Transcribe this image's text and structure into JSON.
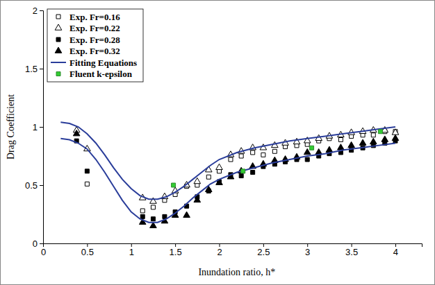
{
  "chart_data": {
    "type": "scatter",
    "x_label": "Inundation ratio, h*",
    "y_label": "Drag Coefficient",
    "xlim": [
      0,
      4.3
    ],
    "ylim": [
      0,
      2
    ],
    "xticks": [
      0,
      0.5,
      1,
      1.5,
      2,
      2.5,
      3,
      3.5,
      4
    ],
    "yticks": [
      0,
      0.5,
      1,
      1.5,
      2
    ],
    "grid": false,
    "legend": "top-left",
    "series": [
      {
        "name": "Exp. Fr=0.16",
        "color": "#000000",
        "marker": "square-open",
        "x": [
          0.5,
          1.13,
          1.25,
          1.38,
          1.5,
          1.63,
          1.75,
          1.88,
          2,
          2.13,
          2.25,
          2.38,
          2.5,
          2.63,
          2.75,
          2.88,
          3,
          3.13,
          3.25,
          3.38,
          3.5,
          3.63,
          3.75,
          3.88,
          4
        ],
        "values": [
          0.51,
          0.28,
          0.31,
          0.37,
          0.42,
          0.49,
          0.5,
          0.57,
          0.62,
          0.72,
          0.75,
          0.78,
          0.76,
          0.79,
          0.83,
          0.84,
          0.85,
          0.88,
          0.9,
          0.89,
          0.92,
          0.93,
          0.93,
          0.96,
          0.96
        ]
      },
      {
        "name": "Exp. Fr=0.22",
        "color": "#000000",
        "marker": "triangle-open",
        "x": [
          0.38,
          0.5,
          1.13,
          1.25,
          1.38,
          1.5,
          1.63,
          1.75,
          1.88,
          2,
          2.13,
          2.25,
          2.38,
          2.5,
          2.63,
          2.75,
          2.88,
          3,
          3.13,
          3.25,
          3.38,
          3.5,
          3.63,
          3.75,
          3.88,
          4
        ],
        "values": [
          0.97,
          0.81,
          0.39,
          0.36,
          0.4,
          0.45,
          0.5,
          0.53,
          0.63,
          0.65,
          0.76,
          0.79,
          0.82,
          0.82,
          0.84,
          0.86,
          0.87,
          0.88,
          0.9,
          0.92,
          0.93,
          0.95,
          0.96,
          0.97,
          0.97,
          0.95
        ]
      },
      {
        "name": "Exp. Fr=0.28",
        "color": "#000000",
        "marker": "square",
        "x": [
          0.38,
          0.5,
          1.13,
          1.25,
          1.38,
          1.5,
          1.63,
          1.75,
          1.88,
          2,
          2.13,
          2.25,
          2.38,
          2.5,
          2.63,
          2.75,
          2.88,
          3,
          3.13,
          3.25,
          3.38,
          3.5,
          3.63,
          3.75,
          3.88,
          4
        ],
        "values": [
          0.88,
          0.62,
          0.23,
          0.21,
          0.23,
          0.27,
          0.32,
          0.4,
          0.45,
          0.53,
          0.59,
          0.58,
          0.61,
          0.66,
          0.68,
          0.7,
          0.72,
          0.72,
          0.75,
          0.77,
          0.78,
          0.8,
          0.82,
          0.84,
          0.86,
          0.88
        ]
      },
      {
        "name": "Exp. Fr=0.32",
        "color": "#000000",
        "marker": "triangle",
        "x": [
          0.38,
          1.13,
          1.25,
          1.38,
          1.5,
          1.63,
          1.75,
          1.88,
          2,
          2.13,
          2.25,
          2.38,
          2.5,
          2.63,
          2.75,
          2.88,
          3,
          3.13,
          3.25,
          3.38,
          3.5,
          3.63,
          3.75,
          3.88,
          4
        ],
        "values": [
          0.94,
          0.18,
          0.15,
          0.19,
          0.24,
          0.24,
          0.37,
          0.46,
          0.52,
          0.57,
          0.62,
          0.66,
          0.68,
          0.71,
          0.72,
          0.74,
          0.78,
          0.78,
          0.8,
          0.82,
          0.84,
          0.86,
          0.87,
          0.89,
          0.9
        ]
      },
      {
        "name": "Fitting Equations",
        "color": "#2a3d9a",
        "type": "line",
        "line_style": "solid",
        "x": [
          0.2,
          0.3,
          0.4,
          0.5,
          0.6,
          0.7,
          0.8,
          0.9,
          1.0,
          1.1,
          1.2,
          1.3,
          1.4,
          1.5,
          1.6,
          1.7,
          1.8,
          1.9,
          2.0,
          2.2,
          2.4,
          2.6,
          2.8,
          3.0,
          3.2,
          3.4,
          3.6,
          3.8,
          4.0,
          null,
          0.2,
          0.3,
          0.4,
          0.5,
          0.6,
          0.7,
          0.8,
          0.9,
          1.0,
          1.1,
          1.2,
          1.3,
          1.4,
          1.5,
          1.6,
          1.7,
          1.8,
          1.9,
          2.0,
          2.2,
          2.4,
          2.6,
          2.8,
          3.0,
          3.2,
          3.4,
          3.6,
          3.8,
          4.0
        ],
        "values": [
          1.04,
          1.03,
          1.0,
          0.94,
          0.86,
          0.76,
          0.65,
          0.55,
          0.47,
          0.41,
          0.38,
          0.38,
          0.4,
          0.44,
          0.49,
          0.55,
          0.61,
          0.67,
          0.72,
          0.78,
          0.82,
          0.85,
          0.88,
          0.9,
          0.92,
          0.94,
          0.96,
          0.98,
          1.0,
          null,
          0.9,
          0.89,
          0.86,
          0.81,
          0.72,
          0.61,
          0.49,
          0.37,
          0.27,
          0.21,
          0.18,
          0.18,
          0.21,
          0.26,
          0.32,
          0.39,
          0.45,
          0.51,
          0.55,
          0.61,
          0.65,
          0.69,
          0.72,
          0.75,
          0.77,
          0.8,
          0.82,
          0.84,
          0.86
        ]
      },
      {
        "name": "Fluent k-epsilon",
        "color": "#33cc33",
        "marker": "square",
        "x": [
          1.48,
          2.27,
          3.05,
          3.83
        ],
        "values": [
          0.5,
          0.62,
          0.82,
          0.96
        ]
      }
    ]
  }
}
